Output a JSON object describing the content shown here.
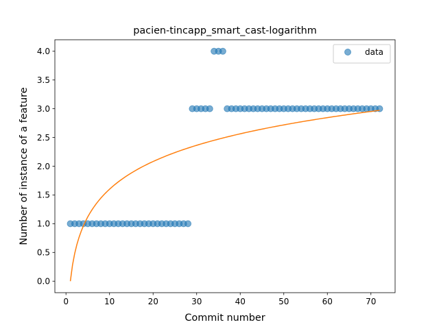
{
  "chart_data": {
    "type": "scatter",
    "title": "pacien-tincapp_smart_cast-logarithm",
    "xlabel": "Commit number",
    "ylabel": "Number of instance of a feature",
    "xlim": [
      -2.55,
      75.55
    ],
    "ylim": [
      -0.2,
      4.2
    ],
    "xticks": [
      0,
      10,
      20,
      30,
      40,
      50,
      60,
      70
    ],
    "yticks": [
      0.0,
      0.5,
      1.0,
      1.5,
      2.0,
      2.5,
      3.0,
      3.5,
      4.0
    ],
    "ytick_labels": [
      "0.0",
      "0.5",
      "1.0",
      "1.5",
      "2.0",
      "2.5",
      "3.0",
      "3.5",
      "4.0"
    ],
    "grid": false,
    "legend_position": "top-right",
    "series": [
      {
        "name": "data",
        "kind": "scatter",
        "color": "#1f77b4",
        "x": [
          1,
          2,
          3,
          4,
          5,
          6,
          7,
          8,
          9,
          10,
          11,
          12,
          13,
          14,
          15,
          16,
          17,
          18,
          19,
          20,
          21,
          22,
          23,
          24,
          25,
          26,
          27,
          28,
          29,
          30,
          31,
          32,
          33,
          34,
          35,
          36,
          37,
          38,
          39,
          40,
          41,
          42,
          43,
          44,
          45,
          46,
          47,
          48,
          49,
          50,
          51,
          52,
          53,
          54,
          55,
          56,
          57,
          58,
          59,
          60,
          61,
          62,
          63,
          64,
          65,
          66,
          67,
          68,
          69,
          70,
          71,
          72
        ],
        "y": [
          1,
          1,
          1,
          1,
          1,
          1,
          1,
          1,
          1,
          1,
          1,
          1,
          1,
          1,
          1,
          1,
          1,
          1,
          1,
          1,
          1,
          1,
          1,
          1,
          1,
          1,
          1,
          1,
          3,
          3,
          3,
          3,
          3,
          4,
          4,
          4,
          3,
          3,
          3,
          3,
          3,
          3,
          3,
          3,
          3,
          3,
          3,
          3,
          3,
          3,
          3,
          3,
          3,
          3,
          3,
          3,
          3,
          3,
          3,
          3,
          3,
          3,
          3,
          3,
          3,
          3,
          3,
          3,
          3,
          3,
          3,
          3
        ]
      },
      {
        "kind": "line",
        "color": "#ff7f0e",
        "function": "a*ln(x)+b",
        "a": 0.695,
        "b": 0.0,
        "x_range": [
          1,
          72
        ]
      }
    ]
  }
}
